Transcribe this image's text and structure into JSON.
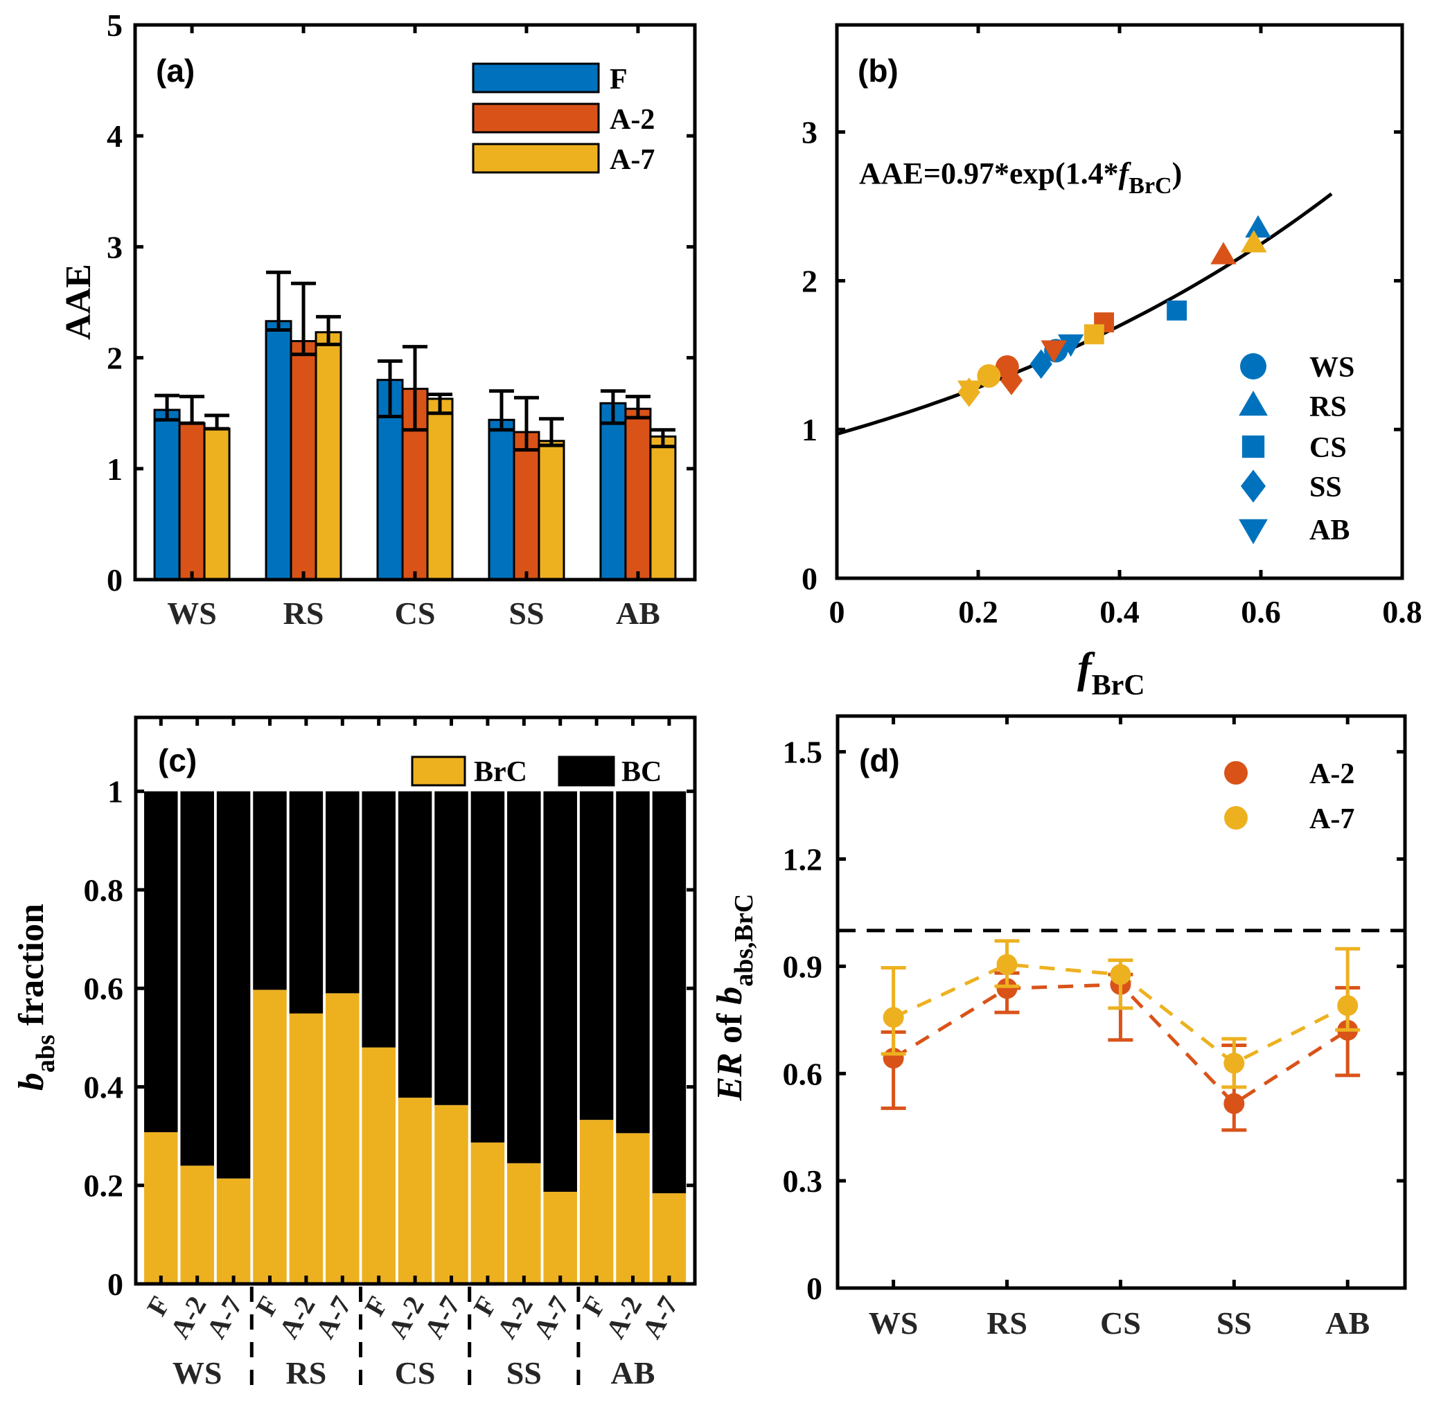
{
  "colors": {
    "F": "#0072BD",
    "A-2": "#D95319",
    "A-7": "#EDB120",
    "BrC": "#EDB120",
    "BC": "#000000",
    "axis": "#000000"
  },
  "chart_data": [
    {
      "id": "a",
      "panel_label": "(a)",
      "type": "bar",
      "title": "",
      "xlabel": "",
      "ylabel": "AAE",
      "ylim": [
        0,
        5
      ],
      "yticks": [
        "0",
        "1",
        "2",
        "3",
        "4",
        "5"
      ],
      "categories": [
        "WS",
        "RS",
        "CS",
        "SS",
        "AB"
      ],
      "legend": [
        "F",
        "A-2",
        "A-7"
      ],
      "legend_position": "top-right",
      "series": [
        {
          "name": "F",
          "values": [
            1.53,
            2.33,
            1.8,
            1.44,
            1.59
          ],
          "err_upper": [
            1.66,
            2.77,
            1.97,
            1.7,
            1.7
          ],
          "err_lower": [
            1.44,
            2.25,
            1.47,
            1.35,
            1.41
          ]
        },
        {
          "name": "A-2",
          "values": [
            1.41,
            2.15,
            1.72,
            1.33,
            1.54
          ],
          "err_upper": [
            1.65,
            2.67,
            2.1,
            1.64,
            1.65
          ],
          "err_lower": [
            1.41,
            2.03,
            1.35,
            1.17,
            1.46
          ]
        },
        {
          "name": "A-7",
          "values": [
            1.36,
            2.23,
            1.63,
            1.25,
            1.29
          ],
          "err_upper": [
            1.48,
            2.37,
            1.67,
            1.45,
            1.35
          ],
          "err_lower": [
            1.36,
            2.12,
            1.5,
            1.21,
            1.2
          ]
        }
      ]
    },
    {
      "id": "b",
      "panel_label": "(b)",
      "type": "scatter",
      "xlabel": "f",
      "xlabel_sub": "BrC",
      "ylabel": "",
      "xlim": [
        0,
        0.8
      ],
      "ylim": [
        0,
        3.72
      ],
      "xticks": [
        "0",
        "0.2",
        "0.4",
        "0.6",
        "0.8"
      ],
      "yticks": [
        "0",
        "1",
        "2",
        "3"
      ],
      "annotation": {
        "prefix": "AAE=0.97*exp(1.4*",
        "italic": "f",
        "sub": "BrC",
        "suffix": ")"
      },
      "fit": {
        "a": 0.97,
        "b": 1.4,
        "x_range": [
          0,
          0.7
        ]
      },
      "legend": [
        {
          "label": "WS",
          "marker": "circle"
        },
        {
          "label": "RS",
          "marker": "triangle-up"
        },
        {
          "label": "CS",
          "marker": "square"
        },
        {
          "label": "SS",
          "marker": "diamond"
        },
        {
          "label": "AB",
          "marker": "triangle-down"
        }
      ],
      "legend_position": "bottom-right",
      "points": [
        {
          "group": "WS",
          "treatment": "F",
          "x": 0.31,
          "y": 1.53
        },
        {
          "group": "WS",
          "treatment": "A-2",
          "x": 0.241,
          "y": 1.42
        },
        {
          "group": "WS",
          "treatment": "A-7",
          "x": 0.215,
          "y": 1.36
        },
        {
          "group": "RS",
          "treatment": "F",
          "x": 0.596,
          "y": 2.35
        },
        {
          "group": "RS",
          "treatment": "A-2",
          "x": 0.547,
          "y": 2.17
        },
        {
          "group": "RS",
          "treatment": "A-7",
          "x": 0.59,
          "y": 2.25
        },
        {
          "group": "CS",
          "treatment": "F",
          "x": 0.481,
          "y": 1.8
        },
        {
          "group": "CS",
          "treatment": "A-2",
          "x": 0.378,
          "y": 1.72
        },
        {
          "group": "CS",
          "treatment": "A-7",
          "x": 0.364,
          "y": 1.64
        },
        {
          "group": "SS",
          "treatment": "F",
          "x": 0.289,
          "y": 1.44
        },
        {
          "group": "SS",
          "treatment": "A-2",
          "x": 0.247,
          "y": 1.33
        },
        {
          "group": "SS",
          "treatment": "A-7",
          "x": 0.187,
          "y": 1.25
        },
        {
          "group": "AB",
          "treatment": "F",
          "x": 0.331,
          "y": 1.58
        },
        {
          "group": "AB",
          "treatment": "A-2",
          "x": 0.307,
          "y": 1.54
        },
        {
          "group": "AB",
          "treatment": "A-7",
          "x": 0.189,
          "y": 1.27
        }
      ]
    },
    {
      "id": "c",
      "panel_label": "(c)",
      "type": "bar",
      "stacked": true,
      "ylabel": "b",
      "ylabel_sub": "abs",
      "ylabel_suffix": " fraction",
      "ylim": [
        0,
        1.15
      ],
      "yticks": [
        "0",
        "0.2",
        "0.4",
        "0.6",
        "0.8",
        "1"
      ],
      "groups": [
        "WS",
        "RS",
        "CS",
        "SS",
        "AB"
      ],
      "treatments": [
        "F",
        "A-2",
        "A-7"
      ],
      "legend": [
        "BrC",
        "BC"
      ],
      "legend_position": "top-right",
      "series": [
        {
          "name": "BrC",
          "values": [
            0.308,
            0.24,
            0.214,
            0.597,
            0.549,
            0.59,
            0.48,
            0.378,
            0.363,
            0.287,
            0.245,
            0.187,
            0.333,
            0.306,
            0.184
          ]
        },
        {
          "name": "BC",
          "values": [
            0.692,
            0.76,
            0.786,
            0.403,
            0.451,
            0.41,
            0.52,
            0.622,
            0.637,
            0.713,
            0.755,
            0.813,
            0.667,
            0.694,
            0.816
          ]
        }
      ]
    },
    {
      "id": "d",
      "panel_label": "(d)",
      "type": "line",
      "ylabel_italic": "ER",
      "ylabel_mid": " of ",
      "ylabel_b": "b",
      "ylabel_sub": "abs,BrC",
      "ylim": [
        0,
        1.6
      ],
      "yticks": [
        "0",
        "0.3",
        "0.6",
        "0.9",
        "1.2",
        "1.5"
      ],
      "categories": [
        "WS",
        "RS",
        "CS",
        "SS",
        "AB"
      ],
      "reference_line": 1.0,
      "legend": [
        "A-2",
        "A-7"
      ],
      "legend_position": "top-right",
      "series": [
        {
          "name": "A-2",
          "values": [
            0.643,
            0.838,
            0.849,
            0.516,
            0.721
          ],
          "err_upper": [
            0.716,
            0.881,
            0.877,
            0.679,
            0.84
          ],
          "err_lower": [
            0.503,
            0.771,
            0.694,
            0.442,
            0.595
          ]
        },
        {
          "name": "A-7",
          "values": [
            0.757,
            0.905,
            0.877,
            0.629,
            0.79
          ],
          "err_upper": [
            0.896,
            0.971,
            0.917,
            0.697,
            0.949
          ],
          "err_lower": [
            0.655,
            0.844,
            0.783,
            0.562,
            0.722
          ]
        }
      ]
    }
  ]
}
